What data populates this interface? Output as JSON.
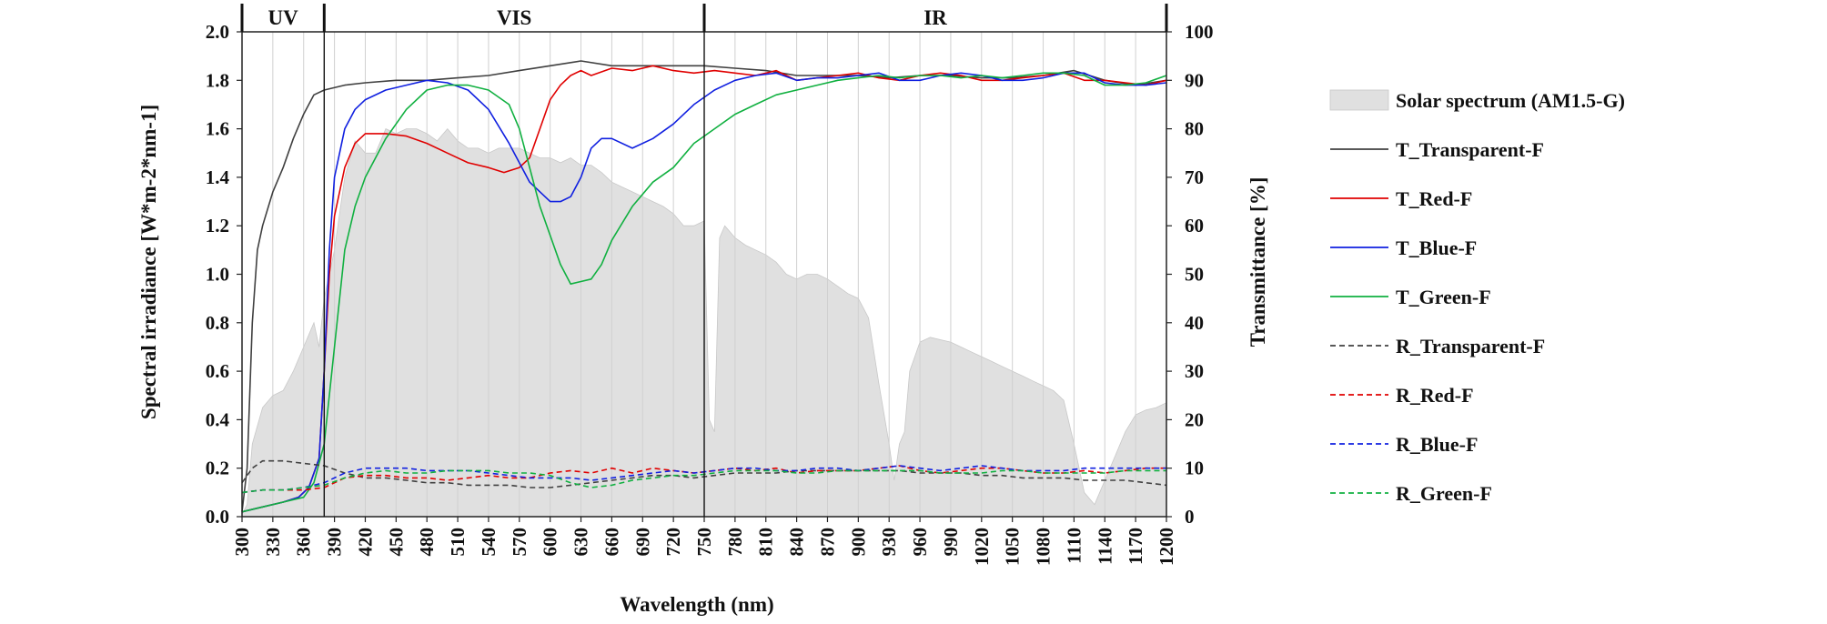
{
  "chart_data": {
    "type": "line",
    "xlabel": "Wavelength (nm)",
    "ylabel_left": "Spectral irradiance  [W*m-2*nm-1]",
    "ylabel_right": "Transmittance  [%]",
    "xlim": [
      300,
      1200
    ],
    "ylim_left": [
      0.0,
      2.0
    ],
    "ylim_right": [
      0,
      100
    ],
    "x_ticks": [
      "300",
      "330",
      "360",
      "390",
      "420",
      "450",
      "480",
      "510",
      "540",
      "570",
      "600",
      "630",
      "660",
      "690",
      "720",
      "750",
      "780",
      "810",
      "840",
      "870",
      "900",
      "930",
      "960",
      "990",
      "1020",
      "1050",
      "1080",
      "1110",
      "1140",
      "1170",
      "1200"
    ],
    "y_left_ticks": [
      "0.0",
      "0.2",
      "0.4",
      "0.6",
      "0.8",
      "1.0",
      "1.2",
      "1.4",
      "1.6",
      "1.8",
      "2.0"
    ],
    "y_right_ticks": [
      "0",
      "10",
      "20",
      "30",
      "40",
      "50",
      "60",
      "70",
      "80",
      "90",
      "100"
    ],
    "regions": [
      {
        "label": "UV",
        "from": 300,
        "to": 380
      },
      {
        "label": "VIS",
        "from": 380,
        "to": 750
      },
      {
        "label": "IR",
        "from": 750,
        "to": 1200
      }
    ],
    "grid": "vertical",
    "legend_position": "right",
    "colors": {
      "solar": "#e0e0e0",
      "transparent": "#404040",
      "red": "#e00000",
      "blue": "#1020e0",
      "green": "#10b040"
    },
    "series": [
      {
        "name": "Solar spectrum (AM1.5-G)",
        "type": "area",
        "axis": "left",
        "color_key": "solar",
        "x": [
          300,
          305,
          310,
          320,
          330,
          340,
          350,
          360,
          370,
          375,
          380,
          385,
          390,
          395,
          400,
          410,
          420,
          430,
          440,
          450,
          460,
          470,
          480,
          490,
          500,
          510,
          520,
          530,
          540,
          550,
          560,
          570,
          580,
          590,
          600,
          610,
          620,
          630,
          640,
          650,
          660,
          670,
          680,
          690,
          700,
          710,
          720,
          730,
          740,
          750,
          755,
          760,
          765,
          770,
          780,
          790,
          800,
          810,
          820,
          830,
          840,
          850,
          860,
          870,
          880,
          890,
          900,
          910,
          920,
          930,
          935,
          940,
          945,
          950,
          960,
          970,
          980,
          990,
          1000,
          1010,
          1020,
          1030,
          1040,
          1050,
          1060,
          1070,
          1080,
          1090,
          1100,
          1110,
          1120,
          1130,
          1140,
          1150,
          1160,
          1170,
          1180,
          1190,
          1200
        ],
        "values": [
          0.01,
          0.05,
          0.3,
          0.45,
          0.5,
          0.52,
          0.6,
          0.7,
          0.8,
          0.7,
          0.9,
          1.0,
          1.1,
          1.25,
          1.4,
          1.55,
          1.5,
          1.5,
          1.6,
          1.58,
          1.6,
          1.6,
          1.58,
          1.55,
          1.6,
          1.55,
          1.52,
          1.52,
          1.5,
          1.52,
          1.52,
          1.52,
          1.5,
          1.48,
          1.48,
          1.46,
          1.48,
          1.45,
          1.45,
          1.42,
          1.38,
          1.36,
          1.34,
          1.32,
          1.3,
          1.28,
          1.25,
          1.2,
          1.2,
          1.22,
          0.4,
          0.35,
          1.15,
          1.2,
          1.15,
          1.12,
          1.1,
          1.08,
          1.05,
          1.0,
          0.98,
          1.0,
          1.0,
          0.98,
          0.95,
          0.92,
          0.9,
          0.82,
          0.55,
          0.3,
          0.15,
          0.3,
          0.35,
          0.6,
          0.72,
          0.74,
          0.73,
          0.72,
          0.7,
          0.68,
          0.66,
          0.64,
          0.62,
          0.6,
          0.58,
          0.56,
          0.54,
          0.52,
          0.48,
          0.3,
          0.1,
          0.05,
          0.15,
          0.25,
          0.35,
          0.42,
          0.44,
          0.45,
          0.47
        ]
      },
      {
        "name": "T_Transparent-F",
        "type": "line",
        "axis": "right",
        "dash": "solid",
        "color_key": "transparent",
        "x": [
          300,
          305,
          310,
          315,
          320,
          330,
          340,
          350,
          360,
          370,
          380,
          400,
          420,
          450,
          480,
          510,
          540,
          570,
          600,
          630,
          660,
          690,
          720,
          750,
          780,
          810,
          840,
          870,
          900,
          930,
          960,
          990,
          1020,
          1050,
          1080,
          1110,
          1140,
          1170,
          1200
        ],
        "values": [
          1,
          10,
          40,
          55,
          60,
          67,
          72,
          78,
          83,
          87,
          88,
          89,
          89.5,
          90,
          90,
          90.5,
          91,
          92,
          93,
          94,
          93,
          93,
          93,
          93,
          92.5,
          92,
          91,
          91,
          91,
          90.5,
          91,
          91,
          90.5,
          90.5,
          91,
          92,
          90,
          89,
          90
        ]
      },
      {
        "name": "T_Red-F",
        "type": "line",
        "axis": "right",
        "dash": "solid",
        "color_key": "red",
        "x": [
          300,
          320,
          340,
          355,
          365,
          375,
          380,
          385,
          390,
          400,
          410,
          420,
          440,
          460,
          480,
          500,
          520,
          540,
          555,
          570,
          580,
          590,
          600,
          610,
          620,
          630,
          640,
          660,
          680,
          700,
          720,
          740,
          760,
          780,
          800,
          820,
          840,
          860,
          880,
          900,
          920,
          940,
          960,
          980,
          1000,
          1020,
          1040,
          1060,
          1080,
          1100,
          1120,
          1140,
          1160,
          1180,
          1200
        ],
        "values": [
          1,
          2,
          3,
          4,
          6,
          12,
          30,
          50,
          62,
          72,
          77,
          79,
          79,
          78.5,
          77,
          75,
          73,
          72,
          71,
          72,
          74,
          80,
          86,
          89,
          91,
          92,
          91,
          92.5,
          92,
          93,
          92,
          91.5,
          92,
          91.5,
          91,
          92,
          90,
          90.5,
          91,
          91.5,
          90.5,
          90,
          91,
          91.5,
          91,
          90,
          90,
          90.5,
          91,
          91.5,
          90,
          90,
          89.5,
          89,
          90
        ]
      },
      {
        "name": "T_Blue-F",
        "type": "line",
        "axis": "right",
        "dash": "solid",
        "color_key": "blue",
        "x": [
          300,
          320,
          340,
          355,
          365,
          375,
          380,
          385,
          390,
          400,
          410,
          420,
          440,
          460,
          480,
          500,
          520,
          540,
          560,
          580,
          600,
          610,
          620,
          630,
          640,
          650,
          660,
          680,
          700,
          720,
          740,
          760,
          780,
          800,
          820,
          840,
          860,
          880,
          900,
          920,
          940,
          960,
          980,
          1000,
          1020,
          1040,
          1060,
          1080,
          1100,
          1120,
          1140,
          1160,
          1180,
          1200
        ],
        "values": [
          1,
          2,
          3,
          4,
          6,
          12,
          30,
          55,
          70,
          80,
          84,
          86,
          88,
          89,
          90,
          89.5,
          88,
          84,
          77,
          69,
          65,
          65,
          66,
          70,
          76,
          78,
          78,
          76,
          78,
          81,
          85,
          88,
          90,
          91,
          91.5,
          90,
          90.5,
          90.5,
          91,
          91.5,
          90,
          90,
          91,
          91.5,
          91,
          90,
          90,
          90.5,
          91.5,
          91.5,
          89.5,
          89,
          89,
          89.5
        ]
      },
      {
        "name": "T_Green-F",
        "type": "line",
        "axis": "right",
        "dash": "solid",
        "color_key": "green",
        "x": [
          300,
          320,
          340,
          360,
          370,
          380,
          390,
          400,
          410,
          420,
          440,
          460,
          480,
          500,
          520,
          540,
          560,
          570,
          580,
          590,
          600,
          610,
          620,
          630,
          640,
          650,
          660,
          680,
          700,
          720,
          740,
          760,
          780,
          800,
          820,
          840,
          860,
          880,
          900,
          920,
          940,
          960,
          980,
          1000,
          1020,
          1040,
          1060,
          1080,
          1100,
          1120,
          1140,
          1160,
          1180,
          1200
        ],
        "values": [
          1,
          2,
          3,
          4,
          7,
          15,
          35,
          55,
          64,
          70,
          78,
          84,
          88,
          89,
          89,
          88,
          85,
          80,
          72,
          64,
          58,
          52,
          48,
          48.5,
          49,
          52,
          57,
          64,
          69,
          72,
          77,
          80,
          83,
          85,
          87,
          88,
          89,
          90,
          90.5,
          91,
          90.5,
          91,
          91,
          90.5,
          91,
          90.5,
          91,
          91.5,
          91.5,
          91,
          89,
          89,
          89.5,
          91
        ]
      },
      {
        "name": "R_Transparent-F",
        "type": "line",
        "axis": "right",
        "dash": "dashed",
        "color_key": "transparent",
        "x": [
          300,
          310,
          320,
          340,
          360,
          380,
          400,
          420,
          440,
          460,
          480,
          500,
          520,
          540,
          560,
          580,
          600,
          620,
          640,
          660,
          680,
          700,
          720,
          740,
          760,
          780,
          800,
          820,
          840,
          860,
          880,
          900,
          920,
          940,
          960,
          980,
          1000,
          1020,
          1040,
          1060,
          1080,
          1100,
          1120,
          1140,
          1160,
          1180,
          1200
        ],
        "values": [
          7,
          10,
          11.5,
          11.5,
          11,
          10.5,
          9,
          8,
          8,
          7.5,
          7,
          7,
          6.5,
          6.5,
          6.5,
          6,
          6,
          6.5,
          7,
          7.5,
          8,
          8.5,
          8.5,
          8,
          8.5,
          9,
          9,
          9,
          9.5,
          9.5,
          9.5,
          9.5,
          9.5,
          9.5,
          9,
          9,
          9,
          8.5,
          8.5,
          8,
          8,
          8,
          7.5,
          7.5,
          7.5,
          7,
          6.5
        ]
      },
      {
        "name": "R_Red-F",
        "type": "line",
        "axis": "right",
        "dash": "dashed",
        "color_key": "red",
        "x": [
          300,
          320,
          340,
          360,
          380,
          400,
          420,
          440,
          460,
          480,
          500,
          520,
          540,
          560,
          580,
          600,
          620,
          640,
          660,
          680,
          700,
          720,
          740,
          760,
          780,
          800,
          820,
          840,
          860,
          880,
          900,
          920,
          940,
          960,
          980,
          1000,
          1020,
          1040,
          1060,
          1080,
          1100,
          1120,
          1140,
          1160,
          1180,
          1200
        ],
        "values": [
          5,
          5.5,
          5.5,
          5.5,
          6,
          8,
          8.5,
          8.5,
          8,
          8,
          7.5,
          8,
          8.5,
          8,
          8,
          9,
          9.5,
          9,
          10,
          9,
          10,
          9.5,
          9,
          9.5,
          10,
          9.5,
          10,
          9,
          9.5,
          9.5,
          9.5,
          10,
          10.5,
          9.5,
          9,
          9.5,
          10,
          10,
          9.5,
          9,
          9,
          9.5,
          9,
          9.5,
          10,
          10
        ]
      },
      {
        "name": "R_Blue-F",
        "type": "line",
        "axis": "right",
        "dash": "dashed",
        "color_key": "blue",
        "x": [
          300,
          320,
          340,
          360,
          380,
          400,
          420,
          440,
          460,
          480,
          500,
          520,
          540,
          560,
          580,
          600,
          620,
          640,
          660,
          680,
          700,
          720,
          740,
          760,
          780,
          800,
          820,
          840,
          860,
          880,
          900,
          920,
          940,
          960,
          980,
          1000,
          1020,
          1040,
          1060,
          1080,
          1100,
          1120,
          1140,
          1160,
          1180,
          1200
        ],
        "values": [
          5,
          5.5,
          5.5,
          6,
          7,
          9,
          10,
          10,
          10,
          9.5,
          9.5,
          9.5,
          9,
          8.5,
          8,
          8,
          8,
          7.5,
          8,
          8.5,
          9,
          9.5,
          9,
          9.5,
          10,
          10,
          9.5,
          9.5,
          10,
          10,
          9.5,
          10,
          10.5,
          10,
          9.5,
          10,
          10.5,
          10,
          9.5,
          9.5,
          9.5,
          10,
          10,
          10,
          10,
          10
        ]
      },
      {
        "name": "R_Green-F",
        "type": "line",
        "axis": "right",
        "dash": "dashed",
        "color_key": "green",
        "x": [
          300,
          320,
          340,
          360,
          380,
          400,
          420,
          440,
          460,
          480,
          500,
          520,
          540,
          560,
          580,
          600,
          620,
          640,
          660,
          680,
          700,
          720,
          740,
          760,
          780,
          800,
          820,
          840,
          860,
          880,
          900,
          920,
          940,
          960,
          980,
          1000,
          1020,
          1040,
          1060,
          1080,
          1100,
          1120,
          1140,
          1160,
          1180,
          1200
        ],
        "values": [
          5,
          5.5,
          5.5,
          6,
          6.5,
          8,
          9,
          9.5,
          9,
          9,
          9.5,
          9.5,
          9.5,
          9,
          9,
          8.5,
          7,
          6,
          6.5,
          7.5,
          8,
          8.5,
          8.5,
          9,
          9.5,
          9.5,
          9.5,
          9,
          9,
          9.5,
          9.5,
          9.5,
          9.5,
          9.5,
          9,
          9,
          9,
          9.5,
          9.5,
          9,
          9,
          9,
          9,
          9.5,
          9.5,
          9.5
        ]
      }
    ]
  }
}
